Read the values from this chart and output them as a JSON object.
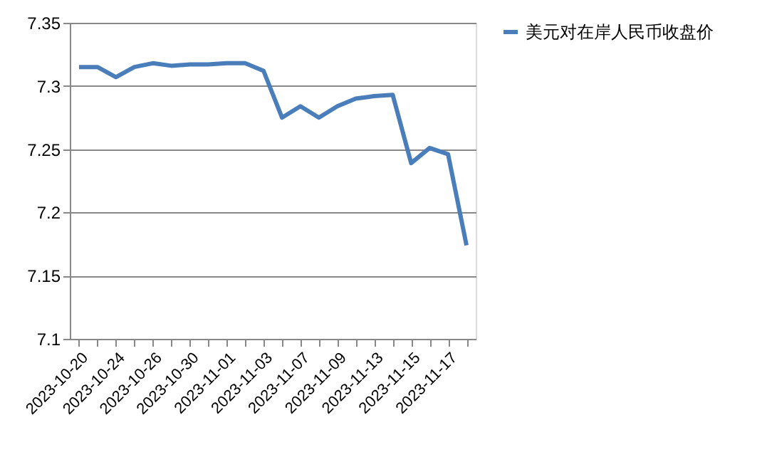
{
  "chart_data": {
    "type": "line",
    "categories": [
      "2023-10-20",
      null,
      "2023-10-24",
      null,
      "2023-10-26",
      null,
      "2023-10-30",
      null,
      "2023-11-01",
      null,
      "2023-11-03",
      null,
      "2023-11-07",
      null,
      "2023-11-09",
      null,
      "2023-11-13",
      null,
      "2023-11-15",
      null,
      "2023-11-17",
      null
    ],
    "series": [
      {
        "name": "美元对在岸人民币收盘价",
        "color": "#4a7ebb",
        "values": [
          7.315,
          7.315,
          7.307,
          7.315,
          7.318,
          7.316,
          7.317,
          7.317,
          7.318,
          7.318,
          7.312,
          7.275,
          7.284,
          7.275,
          7.284,
          7.29,
          7.292,
          7.293,
          7.239,
          7.251,
          7.246,
          7.174
        ]
      }
    ],
    "ylim": [
      7.1,
      7.35
    ],
    "yticks": [
      7.1,
      7.15,
      7.2,
      7.25,
      7.3,
      7.35
    ],
    "grid": "y",
    "legend": "right",
    "marker": "none",
    "line_style": "solid"
  }
}
